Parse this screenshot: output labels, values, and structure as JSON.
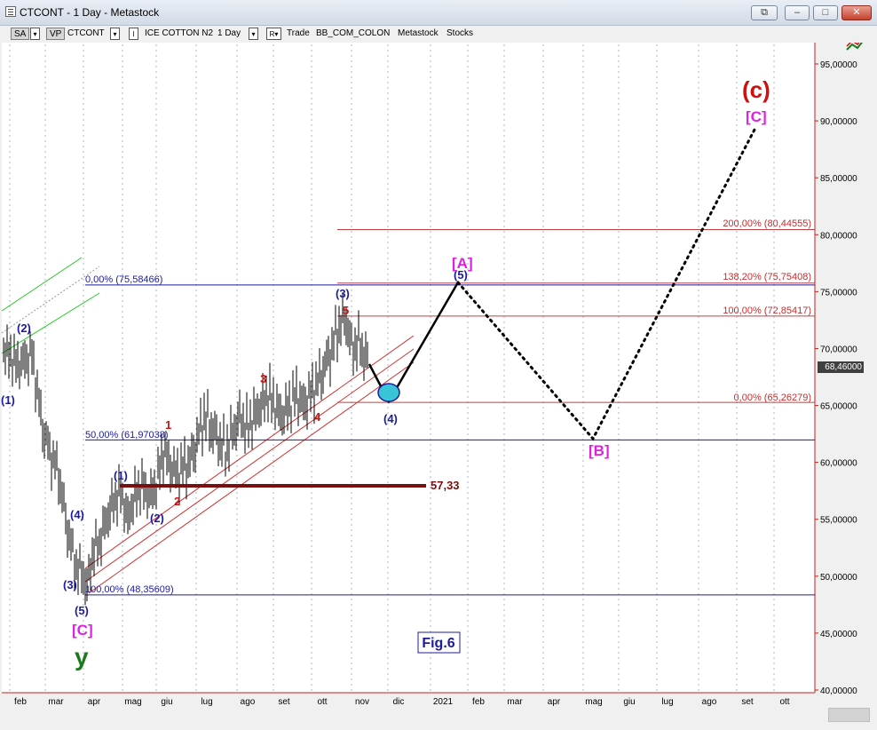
{
  "window": {
    "title": "CTCONT - 1 Day - Metastock",
    "buttons": {
      "restore_extra": "⧉",
      "minimize": "–",
      "maximize": "□",
      "close": "✕"
    }
  },
  "toolbar": {
    "sa": "SA",
    "vp": "VP",
    "symbol": "CTCONT",
    "i_btn": "I",
    "instrument": "ICE COTTON N2",
    "period": "1 Day",
    "r_btn": "R",
    "trade": "Trade",
    "template": "BB_COM_COLON",
    "app": "Metastock",
    "stocks": "Stocks"
  },
  "price_axis": {
    "ticks": [
      "95,00000",
      "90,00000",
      "85,00000",
      "80,00000",
      "75,00000",
      "70,00000",
      "65,00000",
      "60,00000",
      "55,00000",
      "50,00000",
      "45,00000",
      "40,00000"
    ],
    "tick_values": [
      95,
      90,
      85,
      80,
      75,
      70,
      65,
      60,
      55,
      50,
      45,
      40
    ],
    "current_price": "68,46000",
    "current_value": 68.46
  },
  "time_axis": {
    "labels": [
      "feb",
      "mar",
      "apr",
      "mag",
      "giu",
      "lug",
      "ago",
      "set",
      "ott",
      "nov",
      "dic",
      "2021",
      "feb",
      "mar",
      "apr",
      "mag",
      "giu",
      "lug",
      "ago",
      "set",
      "ott"
    ]
  },
  "fib_levels": {
    "upper_0": {
      "label": "0,00% (75,58466)",
      "value": 75.58466
    },
    "upper_50": {
      "label": "50,00% (61,97038)",
      "value": 61.97038
    },
    "upper_100": {
      "label": "100,00% (48,35609)",
      "value": 48.35609
    },
    "ext_200": {
      "label": "200,00% (80,44555)",
      "value": 80.44555
    },
    "ext_138": {
      "label": "138,20% (75,75408)",
      "value": 75.75408
    },
    "ext_100": {
      "label": "100,00% (72,85417)",
      "value": 72.85417
    },
    "ext_0": {
      "label": "0,00% (65,26279)",
      "value": 65.26279
    }
  },
  "support_line": {
    "label": "57,33",
    "value": 57.33
  },
  "wave_labels": {
    "blue_1_top": "(1)",
    "blue_2_top": "(2)",
    "blue_3_low": "(3)",
    "blue_4_low": "(4)",
    "blue_5_low": "(5)",
    "blue_1_mid": "(1)",
    "blue_2_mid": "(2)",
    "blue_3_high": "(3)",
    "blue_4_proj": "(4)",
    "blue_5_proj": "(5)",
    "red_1": "1",
    "red_2": "2",
    "red_3": "3",
    "red_4": "4",
    "red_5": "5",
    "mag_C_low": "[C]",
    "mag_A": "[A]",
    "mag_B": "[B]",
    "mag_C_top": "[C]",
    "red_c": "(c)",
    "green_y": "y"
  },
  "figure_label": "Fig.6",
  "colors": {
    "blue": "#1c1c9c",
    "red": "#cc1111",
    "magenta": "#e020e0",
    "green": "#1a7a1a",
    "dark_red": "#7a0f0f",
    "fib_blue": "#1c1c9c",
    "fib_red": "#c04040",
    "cyan": "#39c5d8"
  }
}
